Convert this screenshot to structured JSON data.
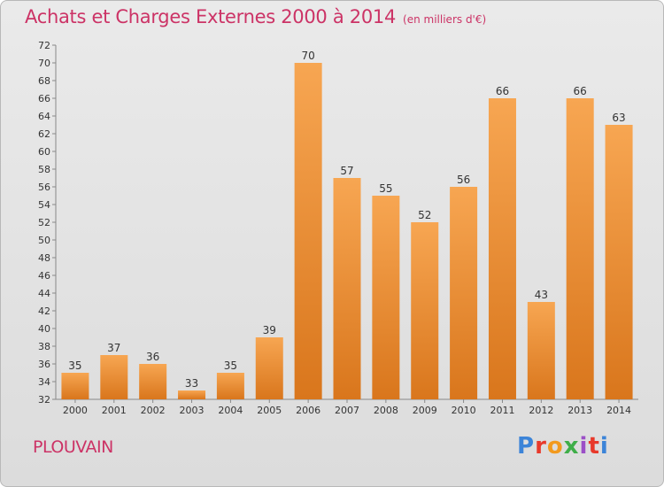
{
  "header": {
    "title": "Achats et Charges Externes 2000 à 2014",
    "unit": "(en milliers d'€)"
  },
  "commune": "PLOUVAIN",
  "logo": {
    "text": "Proxiti",
    "colors": [
      "#3c84d8",
      "#e8392b",
      "#f29a1e",
      "#3fae49",
      "#9b4fc7",
      "#e8392b",
      "#3c84d8"
    ]
  },
  "colors": {
    "title": "#cc3366",
    "bar_top": "#f7a652",
    "bar_bottom": "#d9761c",
    "background": "#e2e2e2"
  },
  "chart_data": {
    "type": "bar",
    "title": "Achats et Charges Externes 2000 à 2014",
    "xlabel": "",
    "ylabel": "",
    "categories": [
      "2000",
      "2001",
      "2002",
      "2003",
      "2004",
      "2005",
      "2006",
      "2007",
      "2008",
      "2009",
      "2010",
      "2011",
      "2012",
      "2013",
      "2014"
    ],
    "values": [
      35,
      37,
      36,
      33,
      35,
      39,
      70,
      57,
      55,
      52,
      56,
      66,
      43,
      66,
      63
    ],
    "ylim": [
      32,
      72
    ],
    "yticks": [
      32,
      34,
      36,
      38,
      40,
      42,
      44,
      46,
      48,
      50,
      52,
      54,
      56,
      58,
      60,
      62,
      64,
      66,
      68,
      70,
      72
    ],
    "grid": false,
    "legend": "none"
  }
}
